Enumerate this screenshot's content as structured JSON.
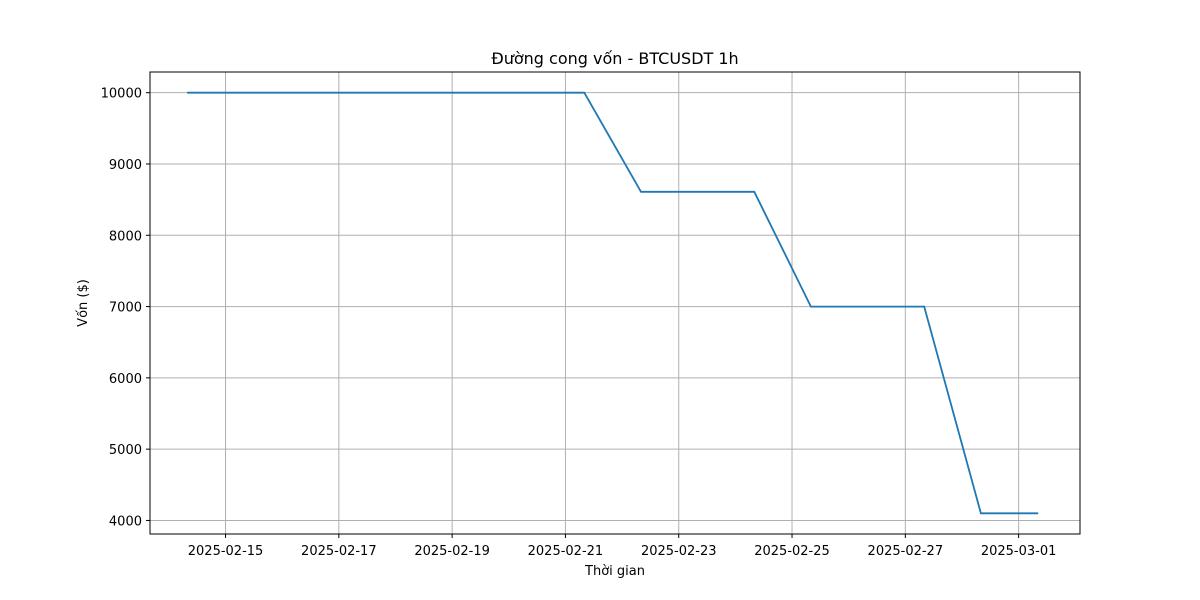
{
  "chart_data": {
    "type": "line",
    "title": "Đường cong vốn - BTCUSDT 1h",
    "xlabel": "Thời gian",
    "ylabel": "Vốn ($)",
    "grid": true,
    "x_tick_labels": [
      "2025-02-15",
      "2025-02-17",
      "2025-02-19",
      "2025-02-21",
      "2025-02-23",
      "2025-02-25",
      "2025-02-27",
      "2025-03-01"
    ],
    "y_tick_labels": [
      "4000",
      "5000",
      "6000",
      "7000",
      "8000",
      "9000",
      "10000"
    ],
    "y_ticks": [
      4000,
      5000,
      6000,
      7000,
      8000,
      9000,
      10000
    ],
    "xlim": [
      "2025-02-13T16:00",
      "2025-03-02T02:00"
    ],
    "ylim": [
      3810,
      10290
    ],
    "series": [
      {
        "color": "#1f77b4",
        "points": [
          {
            "x": "2025-02-14T08:00",
            "y": 10000
          },
          {
            "x": "2025-02-21T08:00",
            "y": 10000
          },
          {
            "x": "2025-02-22T08:00",
            "y": 8610
          },
          {
            "x": "2025-02-24T08:00",
            "y": 8610
          },
          {
            "x": "2025-02-25T08:00",
            "y": 7000
          },
          {
            "x": "2025-02-27T08:00",
            "y": 7000
          },
          {
            "x": "2025-02-28T08:00",
            "y": 4100
          },
          {
            "x": "2025-03-01T08:00",
            "y": 4100
          }
        ]
      }
    ]
  }
}
